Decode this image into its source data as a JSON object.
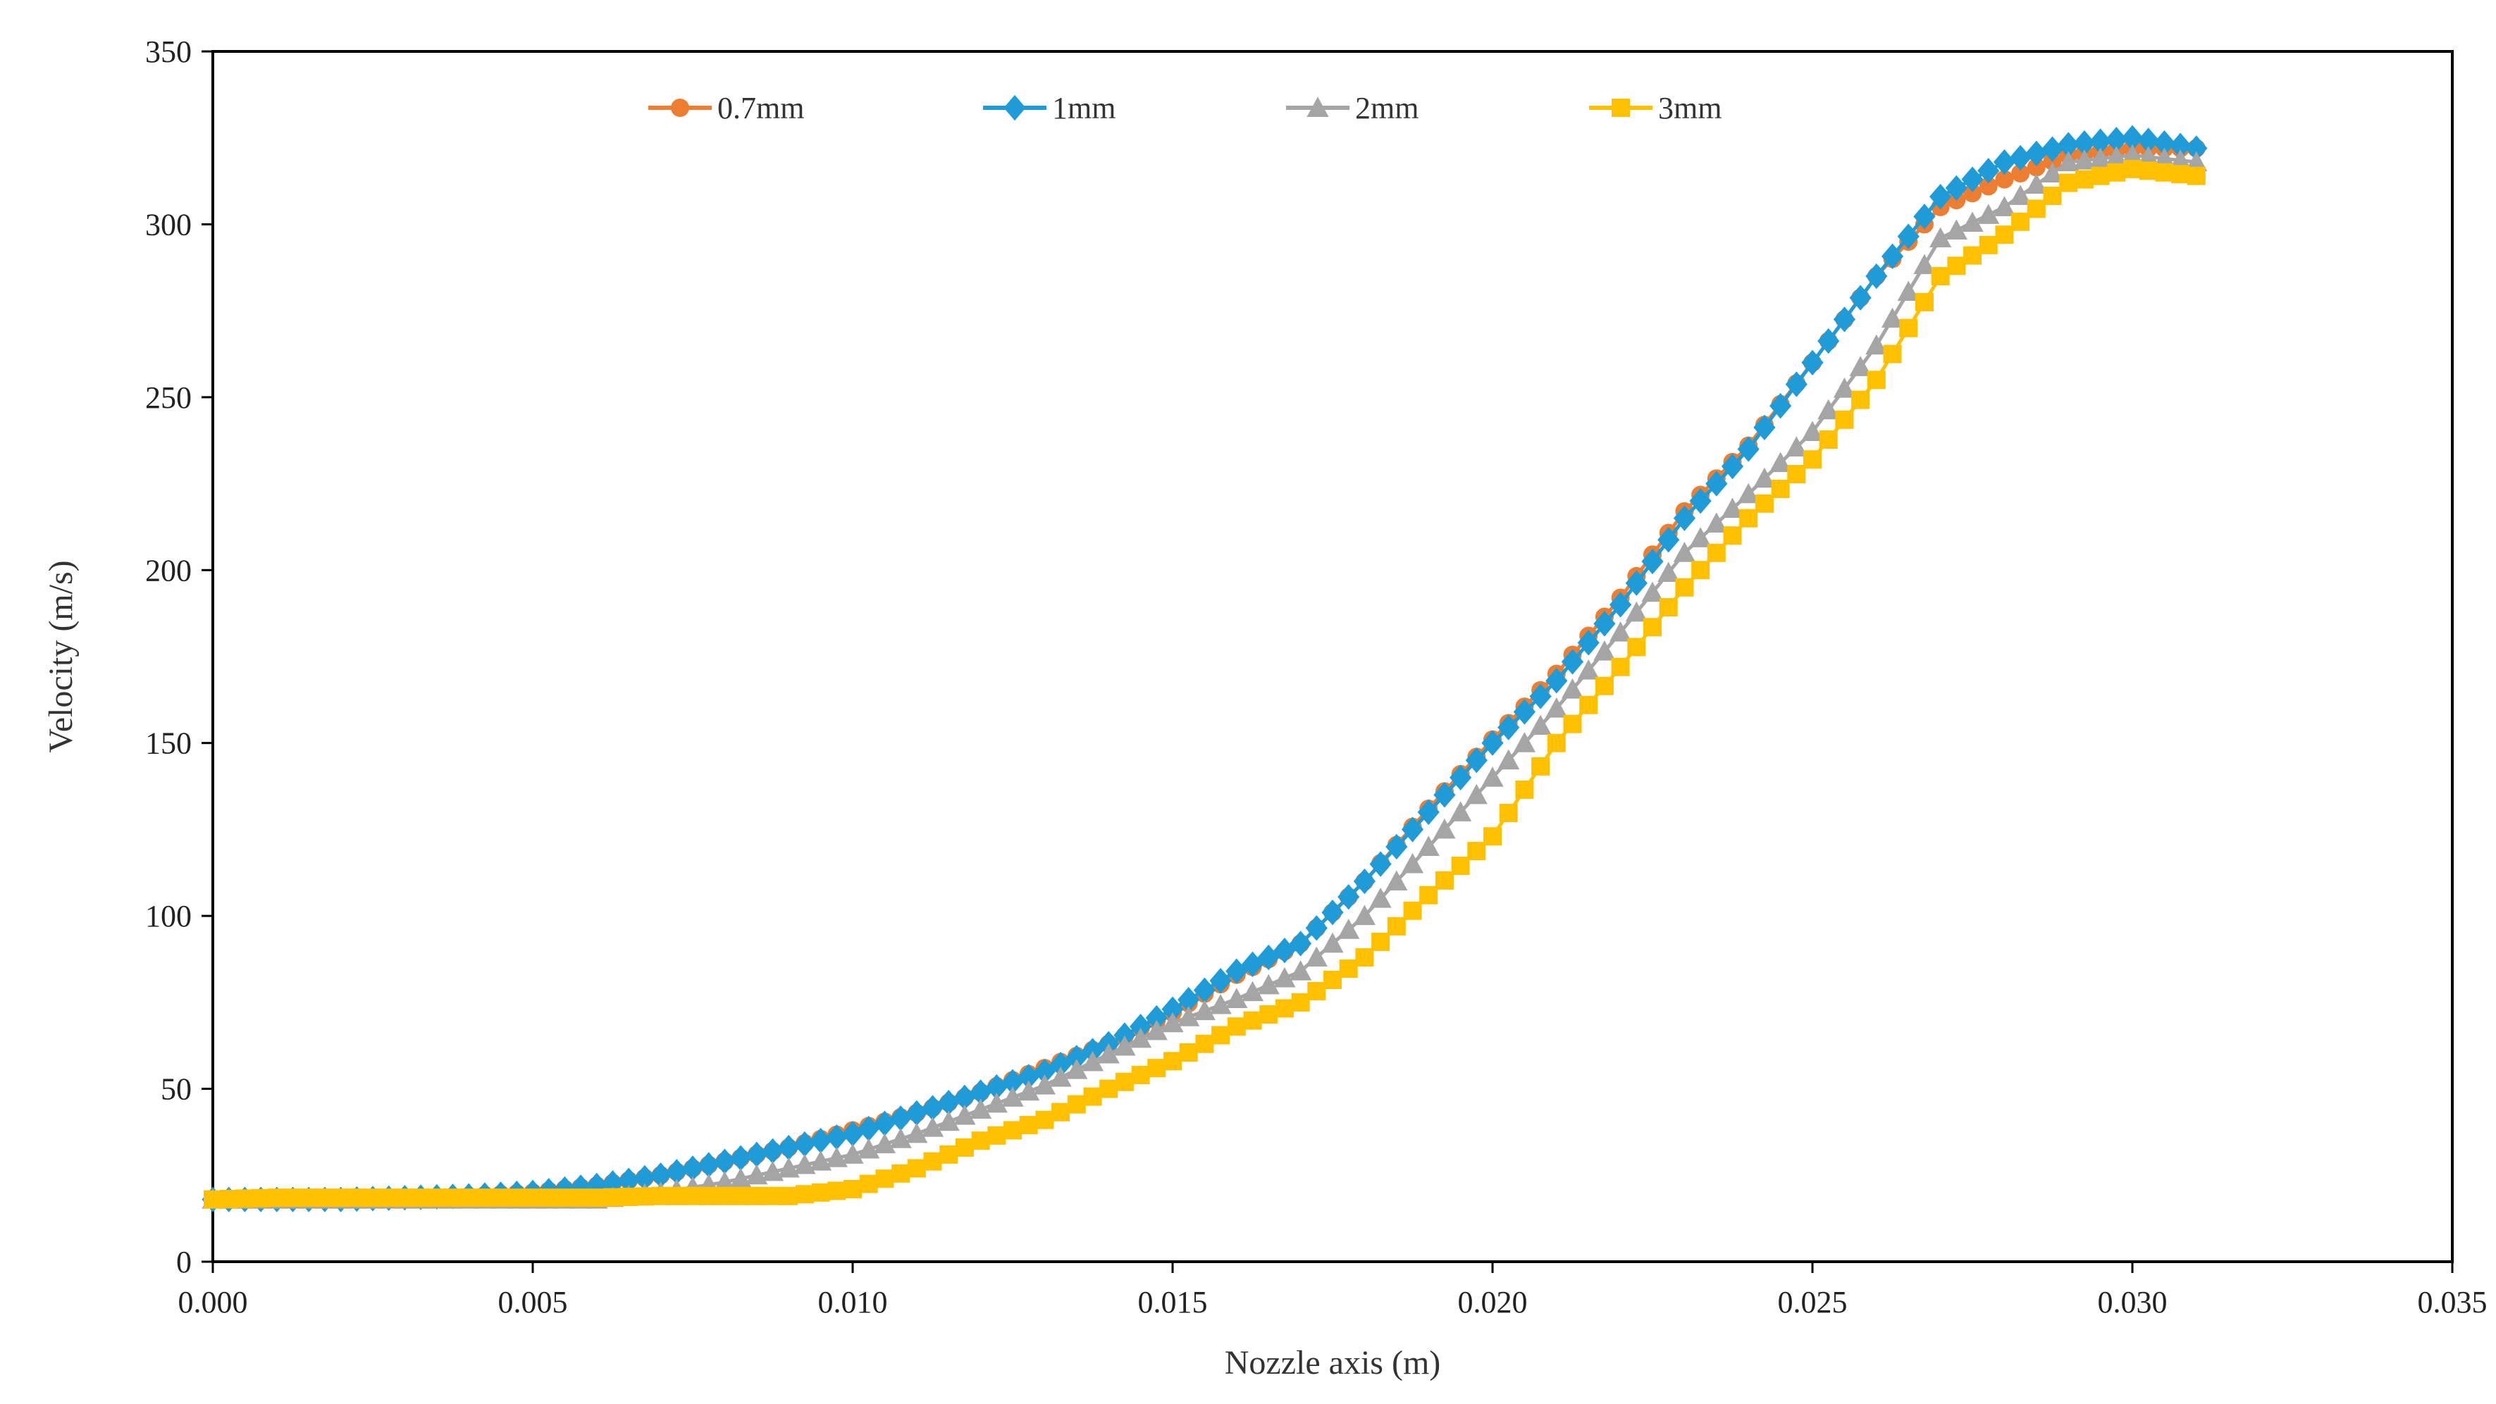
{
  "chart_data": {
    "type": "line",
    "title": "",
    "xlabel": "Nozzle axis (m)",
    "ylabel": "Velocity (m/s)",
    "xlim": [
      0,
      0.035
    ],
    "ylim": [
      0,
      350
    ],
    "grid": false,
    "legend_position": "top",
    "x_ticks": [
      "0.000",
      "0.005",
      "0.010",
      "0.015",
      "0.020",
      "0.025",
      "0.030",
      "0.035"
    ],
    "y_ticks": [
      "0",
      "50",
      "100",
      "150",
      "200",
      "250",
      "300",
      "350"
    ],
    "x": [
      0,
      0.001,
      0.002,
      0.003,
      0.004,
      0.005,
      0.006,
      0.007,
      0.008,
      0.009,
      0.01,
      0.011,
      0.012,
      0.013,
      0.014,
      0.015,
      0.016,
      0.017,
      0.018,
      0.019,
      0.02,
      0.021,
      0.022,
      0.023,
      0.024,
      0.025,
      0.026,
      0.027,
      0.028,
      0.029,
      0.03,
      0.031
    ],
    "series": [
      {
        "name": "0.7mm",
        "color": "#ED7D31",
        "marker": "circle",
        "values": [
          18,
          18,
          18,
          18.5,
          19,
          20,
          22,
          25,
          29,
          33,
          38,
          43,
          49,
          56,
          63,
          72,
          83,
          92,
          110,
          131,
          151,
          170,
          192,
          217,
          236,
          260,
          285,
          305,
          313,
          320,
          322,
          322
        ]
      },
      {
        "name": "1mm",
        "color": "#1F9BD7",
        "marker": "diamond",
        "values": [
          18,
          18,
          18,
          18.5,
          19,
          20,
          22,
          25,
          29,
          33,
          37,
          43,
          49,
          55,
          63,
          73,
          84,
          92,
          110,
          130,
          150,
          168,
          190,
          215,
          235,
          260,
          285,
          308,
          318,
          323,
          325,
          322
        ]
      },
      {
        "name": "2mm",
        "color": "#A5A5A5",
        "marker": "triangle",
        "values": [
          18,
          18,
          18,
          18,
          18,
          18,
          18,
          20,
          23,
          27,
          31,
          37,
          44,
          51,
          60,
          69,
          76,
          84,
          100,
          120,
          140,
          160,
          182,
          205,
          222,
          240,
          265,
          296,
          305,
          318,
          320,
          318
        ]
      },
      {
        "name": "3mm",
        "color": "#FFC000",
        "marker": "square",
        "values": [
          18,
          18.5,
          18.5,
          18.5,
          18.5,
          18.5,
          18.5,
          19,
          19,
          19,
          21,
          27,
          35,
          41,
          50,
          58,
          68,
          75,
          88,
          106,
          123,
          150,
          172,
          195,
          215,
          232,
          255,
          285,
          297,
          312,
          316,
          314
        ]
      }
    ]
  }
}
